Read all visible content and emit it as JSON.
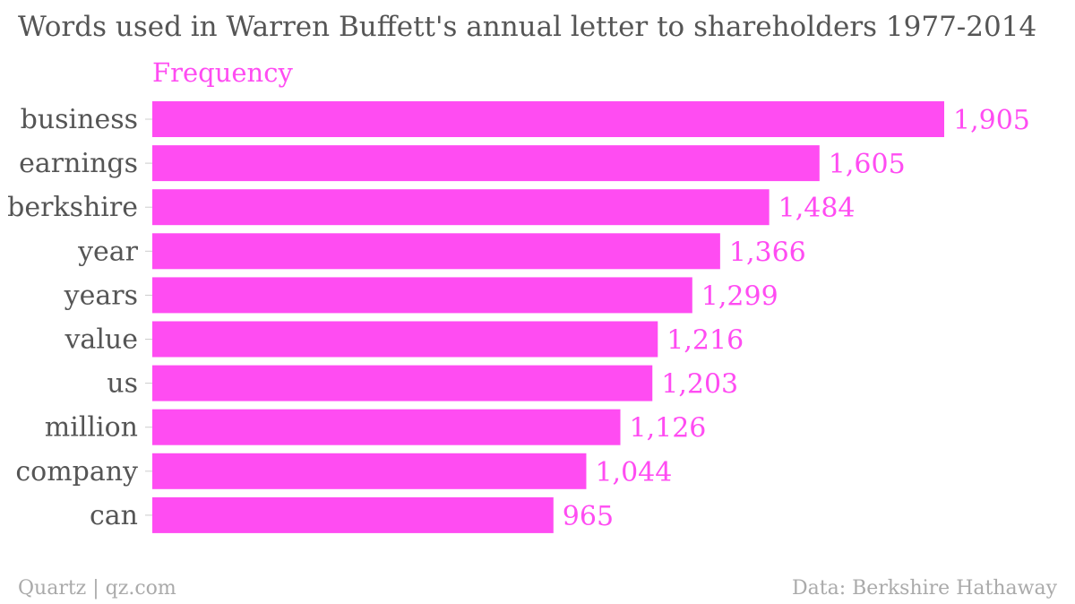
{
  "title": "Words used in Warren Buffett's annual letter to shareholders 1977-2014",
  "footer": {
    "source_left": "Quartz | qz.com",
    "source_right": "Data: Berkshire Hathaway"
  },
  "colors": {
    "bar": "#ff4cf2",
    "accent_text": "#ff4cf2",
    "category_text": "#555555",
    "muted_text": "#aaaaaa"
  },
  "chart_data": {
    "type": "bar",
    "orientation": "horizontal",
    "title": "Words used in Warren Buffett's annual letter to shareholders 1977-2014",
    "series_name": "Frequency",
    "categories": [
      "business",
      "earnings",
      "berkshire",
      "year",
      "years",
      "value",
      "us",
      "million",
      "company",
      "can"
    ],
    "values": [
      1905,
      1605,
      1484,
      1366,
      1299,
      1216,
      1203,
      1126,
      1044,
      965
    ],
    "value_labels": [
      "1,905",
      "1,605",
      "1,484",
      "1,366",
      "1,299",
      "1,216",
      "1,203",
      "1,126",
      "1,044",
      "965"
    ],
    "xlim": [
      0,
      1905
    ],
    "grid": false,
    "legend": "none"
  }
}
